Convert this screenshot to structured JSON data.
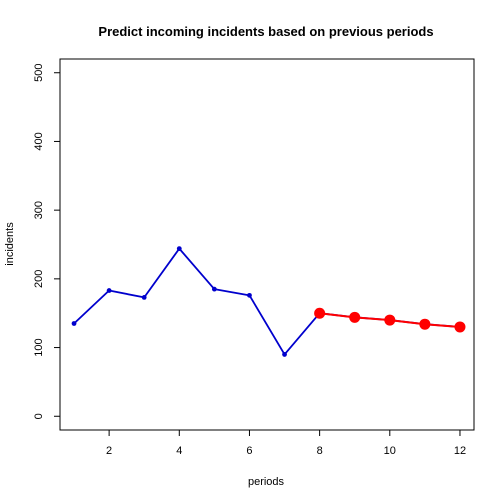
{
  "chart_data": {
    "type": "line",
    "title": "Predict incoming incidents based on previous periods",
    "xlabel": "periods",
    "ylabel": "incidents",
    "xlim": [
      0.6,
      12.4
    ],
    "ylim": [
      -20,
      520
    ],
    "x_ticks": [
      "2",
      "4",
      "6",
      "8",
      "10",
      "12"
    ],
    "y_ticks": [
      "0",
      "100",
      "200",
      "300",
      "400",
      "500"
    ],
    "grid": false,
    "legend": "none",
    "series": [
      {
        "x": [
          1,
          2,
          3,
          4,
          5,
          6,
          7,
          8,
          9,
          10,
          11,
          12
        ],
        "values": [
          135,
          183,
          173,
          244,
          185,
          176,
          90,
          150,
          144,
          140,
          134,
          130
        ],
        "color": "#0000CD",
        "marker": "small-dot"
      },
      {
        "x": [
          8,
          9,
          10,
          11,
          12
        ],
        "values": [
          150,
          144,
          140,
          134,
          130
        ],
        "color": "#FF0000",
        "marker": "large-dot"
      }
    ]
  }
}
